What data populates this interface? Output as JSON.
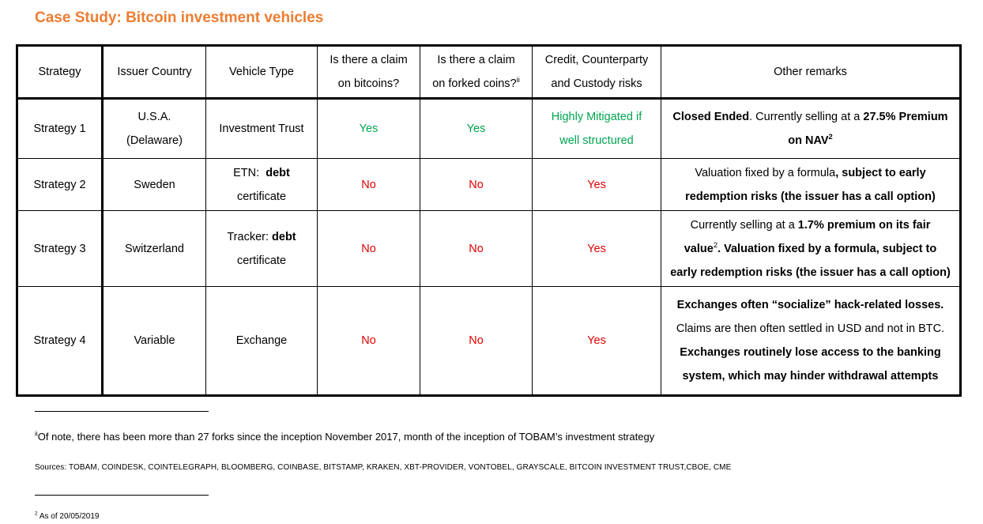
{
  "title": "Case Study: Bitcoin investment vehicles",
  "headers": {
    "strategy": "Strategy",
    "country": "Issuer Country",
    "vehicle": "Vehicle Type",
    "claim_btc_1": "Is there a claim",
    "claim_btc_2": "on bitcoins?",
    "claim_fork_1": "Is there a claim",
    "claim_fork_2": "on forked coins?",
    "claim_fork_sup": "ii",
    "risk_1": "Credit, Counterparty",
    "risk_2": "and Custody  risks",
    "remarks": "Other remarks"
  },
  "rows": [
    {
      "strategy": "Strategy 1",
      "country_1": "U.S.A.",
      "country_2": "(Delaware)",
      "vehicle": "Investment Trust",
      "claim_btc": "Yes",
      "claim_fork": "Yes",
      "risk_1": "Highly Mitigated  if",
      "risk_2": "well structured",
      "remarks": {
        "b1": "Closed Ended",
        "t1": ". Currently selling at a ",
        "b2": "27.5% Premium",
        "b3": "on NAV",
        "sup": "2"
      }
    },
    {
      "strategy": "Strategy 2",
      "country": "Sweden",
      "vehicle_1": "ETN:  ",
      "vehicle_1b": "debt",
      "vehicle_2": "certificate",
      "claim_btc": "No",
      "claim_fork": "No",
      "risk": "Yes",
      "remarks": {
        "t1": "Valuation fixed by a formula",
        "b1": ", subject to early",
        "b2": "redemption risks (the issuer has a call option)"
      }
    },
    {
      "strategy": "Strategy 3",
      "country": "Switzerland",
      "vehicle_1": "Tracker: ",
      "vehicle_1b": "debt",
      "vehicle_2": "certificate",
      "claim_btc": "No",
      "claim_fork": "No",
      "risk": "Yes",
      "remarks": {
        "t1": "Currently selling at a ",
        "b1": "1.7% premium on its fair",
        "b2": "value",
        "sup": "2",
        "t2": ". Valuation fixed by a formula",
        "b3": ", subject to",
        "b4": "early redemption risks (the issuer has a call option)"
      }
    },
    {
      "strategy": "Strategy 4",
      "country": "Variable",
      "vehicle": "Exchange",
      "claim_btc": "No",
      "claim_fork": "No",
      "risk": "Yes",
      "remarks": {
        "b1": "Exchanges often “socialize” hack-related losses.",
        "t1": "Claims are then often settled in USD and not in BTC.",
        "b2": "Exchanges routinely lose access to the banking",
        "b3": "system, which may hinder withdrawal attempts"
      }
    }
  ],
  "footnotes": {
    "fn1_sup": "ii",
    "fn1": "Of note, there has been more than 27 forks since the inception November 2017, month of the inception of TOBAM’s investment strategy",
    "sources": "Sources: TOBAM, COINDESK, COINTELEGRAPH, BLOOMBERG, COINBASE, BITSTAMP, KRAKEN, XBT-PROVIDER, VONTOBEL, GRAYSCALE,  BITCOIN INVESTMENT TRUST,CBOE, CME",
    "fn2_sup": "2",
    "fn2": " As of 20/05/2019"
  },
  "colors": {
    "title": "#ED7D31",
    "green": "#00A550",
    "red": "#E00000"
  }
}
